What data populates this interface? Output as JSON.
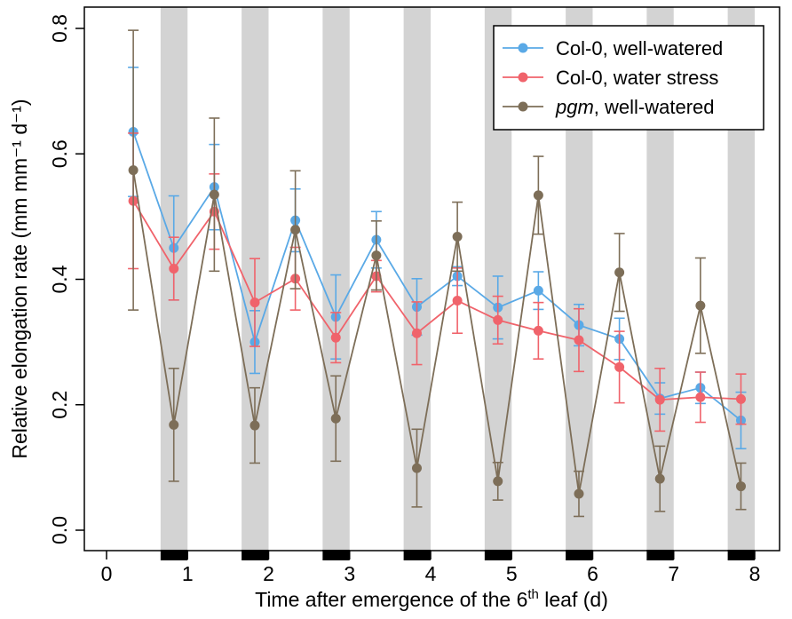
{
  "chart_data": {
    "type": "line",
    "title": "",
    "xlabel": {
      "pre": "Time after emergence of the 6",
      "sup": "th",
      "post": " leaf (d)"
    },
    "ylabel": "Relative elongation rate (mm mm⁻¹ d⁻¹)",
    "xlim": [
      0,
      8
    ],
    "ylim": [
      0,
      0.8
    ],
    "x_ticks": [
      "0",
      "1",
      "2",
      "3",
      "4",
      "5",
      "6",
      "7",
      "8"
    ],
    "y_ticks": [
      "0.0",
      "0.2",
      "0.4",
      "0.6",
      "0.8"
    ],
    "night_periods": [
      [
        0.667,
        1.0
      ],
      [
        1.667,
        2.0
      ],
      [
        2.667,
        3.0
      ],
      [
        3.667,
        4.0
      ],
      [
        4.667,
        5.0
      ],
      [
        5.667,
        6.0
      ],
      [
        6.667,
        7.0
      ],
      [
        7.667,
        8.0
      ]
    ],
    "x": [
      0.33,
      0.83,
      1.33,
      1.83,
      2.33,
      2.83,
      3.33,
      3.83,
      4.33,
      4.83,
      5.33,
      5.83,
      6.33,
      6.83,
      7.33,
      7.83
    ],
    "series": [
      {
        "name": "Col-0, well-watered",
        "name_parts": [
          {
            "text": "Col-0, well-watered",
            "italic": false
          }
        ],
        "color": "#5AA9E6",
        "values": [
          0.635,
          0.45,
          0.547,
          0.3,
          0.494,
          0.34,
          0.463,
          0.356,
          0.405,
          0.355,
          0.382,
          0.327,
          0.305,
          0.21,
          0.227,
          0.175
        ],
        "errors": [
          0.103,
          0.083,
          0.068,
          0.05,
          0.05,
          0.067,
          0.045,
          0.045,
          0.015,
          0.05,
          0.03,
          0.033,
          0.033,
          0.025,
          0.025,
          0.045
        ]
      },
      {
        "name": "Col-0, water stress",
        "name_parts": [
          {
            "text": "Col-0, water stress",
            "italic": false
          }
        ],
        "color": "#F0636B",
        "values": [
          0.525,
          0.417,
          0.508,
          0.363,
          0.401,
          0.307,
          0.405,
          0.314,
          0.366,
          0.335,
          0.318,
          0.303,
          0.26,
          0.208,
          0.212,
          0.209
        ],
        "errors": [
          0.108,
          0.05,
          0.06,
          0.07,
          0.05,
          0.04,
          0.025,
          0.05,
          0.052,
          0.038,
          0.045,
          0.05,
          0.057,
          0.05,
          0.04,
          0.04
        ]
      },
      {
        "name": "pgm, well-watered",
        "name_parts": [
          {
            "text": "pgm",
            "italic": true
          },
          {
            "text": ", well-watered",
            "italic": false
          }
        ],
        "color": "#7D6E58",
        "values": [
          0.574,
          0.168,
          0.535,
          0.167,
          0.479,
          0.178,
          0.438,
          0.099,
          0.468,
          0.078,
          0.534,
          0.058,
          0.411,
          0.082,
          0.358,
          0.07
        ],
        "errors": [
          0.223,
          0.09,
          0.122,
          0.06,
          0.094,
          0.068,
          0.055,
          0.062,
          0.055,
          0.03,
          0.062,
          0.036,
          0.062,
          0.052,
          0.076,
          0.037
        ]
      }
    ],
    "legend_position": "top-right",
    "grid": false
  }
}
